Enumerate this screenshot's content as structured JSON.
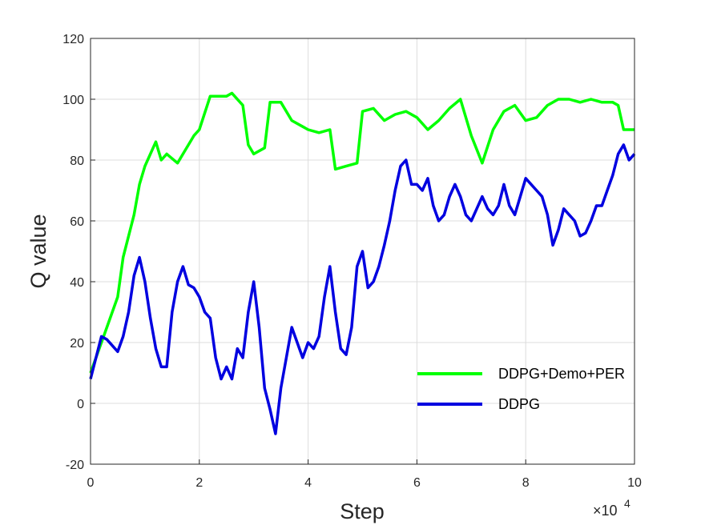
{
  "chart_data": {
    "type": "line",
    "title": "",
    "xlabel": "Step",
    "ylabel": "Q value",
    "x_exponent_base": "×10",
    "x_exponent_power": "4",
    "xlim": [
      0,
      10
    ],
    "ylim": [
      -20,
      120
    ],
    "x_ticks": [
      "0",
      "2",
      "4",
      "6",
      "8",
      "10"
    ],
    "y_ticks": [
      "-20",
      "0",
      "20",
      "40",
      "60",
      "80",
      "100",
      "120"
    ],
    "grid": true,
    "legend_position": "lower-right",
    "series": [
      {
        "name": "DDPG+Demo+PER",
        "color": "#00ff00",
        "x": [
          0,
          0.3,
          0.5,
          0.6,
          0.8,
          0.9,
          1.0,
          1.2,
          1.3,
          1.4,
          1.6,
          1.7,
          1.9,
          2.0,
          2.2,
          2.5,
          2.6,
          2.8,
          2.9,
          3.0,
          3.2,
          3.3,
          3.5,
          3.7,
          3.9,
          4.0,
          4.2,
          4.4,
          4.5,
          4.7,
          4.9,
          5.0,
          5.2,
          5.4,
          5.6,
          5.8,
          6.0,
          6.2,
          6.4,
          6.6,
          6.8,
          7.0,
          7.2,
          7.4,
          7.6,
          7.8,
          8.0,
          8.2,
          8.4,
          8.6,
          8.8,
          9.0,
          9.2,
          9.4,
          9.6,
          9.7,
          9.8,
          10.0
        ],
        "y": [
          10,
          25,
          35,
          48,
          62,
          72,
          78,
          86,
          80,
          82,
          79,
          82,
          88,
          90,
          101,
          101,
          102,
          98,
          85,
          82,
          84,
          99,
          99,
          93,
          91,
          90,
          89,
          90,
          77,
          78,
          79,
          96,
          97,
          93,
          95,
          96,
          94,
          90,
          93,
          97,
          100,
          88,
          79,
          90,
          96,
          98,
          93,
          94,
          98,
          100,
          100,
          99,
          100,
          99,
          99,
          98,
          90,
          90
        ]
      },
      {
        "name": "DDPG",
        "color": "#0000e0",
        "x": [
          0,
          0.1,
          0.2,
          0.3,
          0.4,
          0.5,
          0.6,
          0.7,
          0.8,
          0.9,
          1.0,
          1.1,
          1.2,
          1.3,
          1.4,
          1.5,
          1.6,
          1.7,
          1.8,
          1.9,
          2.0,
          2.1,
          2.2,
          2.3,
          2.4,
          2.5,
          2.6,
          2.7,
          2.8,
          2.9,
          3.0,
          3.1,
          3.2,
          3.3,
          3.4,
          3.5,
          3.6,
          3.7,
          3.8,
          3.9,
          4.0,
          4.1,
          4.2,
          4.3,
          4.4,
          4.5,
          4.6,
          4.7,
          4.8,
          4.9,
          5.0,
          5.1,
          5.2,
          5.3,
          5.4,
          5.5,
          5.6,
          5.7,
          5.8,
          5.9,
          6.0,
          6.1,
          6.2,
          6.3,
          6.4,
          6.5,
          6.6,
          6.7,
          6.8,
          6.9,
          7.0,
          7.1,
          7.2,
          7.3,
          7.4,
          7.5,
          7.6,
          7.7,
          7.8,
          7.9,
          8.0,
          8.1,
          8.2,
          8.3,
          8.4,
          8.5,
          8.6,
          8.7,
          8.8,
          8.9,
          9.0,
          9.1,
          9.2,
          9.3,
          9.4,
          9.5,
          9.6,
          9.7,
          9.8,
          9.9,
          10.0
        ],
        "y": [
          8,
          15,
          22,
          21,
          19,
          17,
          22,
          30,
          42,
          48,
          40,
          28,
          18,
          12,
          12,
          30,
          40,
          45,
          39,
          38,
          35,
          30,
          28,
          15,
          8,
          12,
          8,
          18,
          15,
          30,
          40,
          25,
          5,
          -2,
          -10,
          5,
          15,
          25,
          20,
          15,
          20,
          18,
          22,
          35,
          45,
          30,
          18,
          16,
          25,
          45,
          50,
          38,
          40,
          45,
          52,
          60,
          70,
          78,
          80,
          72,
          72,
          70,
          74,
          65,
          60,
          62,
          68,
          72,
          68,
          62,
          60,
          64,
          68,
          64,
          62,
          65,
          72,
          65,
          62,
          68,
          74,
          72,
          70,
          68,
          62,
          52,
          57,
          64,
          62,
          60,
          55,
          56,
          60,
          65,
          65,
          70,
          75,
          82,
          85,
          80,
          82
        ]
      }
    ]
  }
}
